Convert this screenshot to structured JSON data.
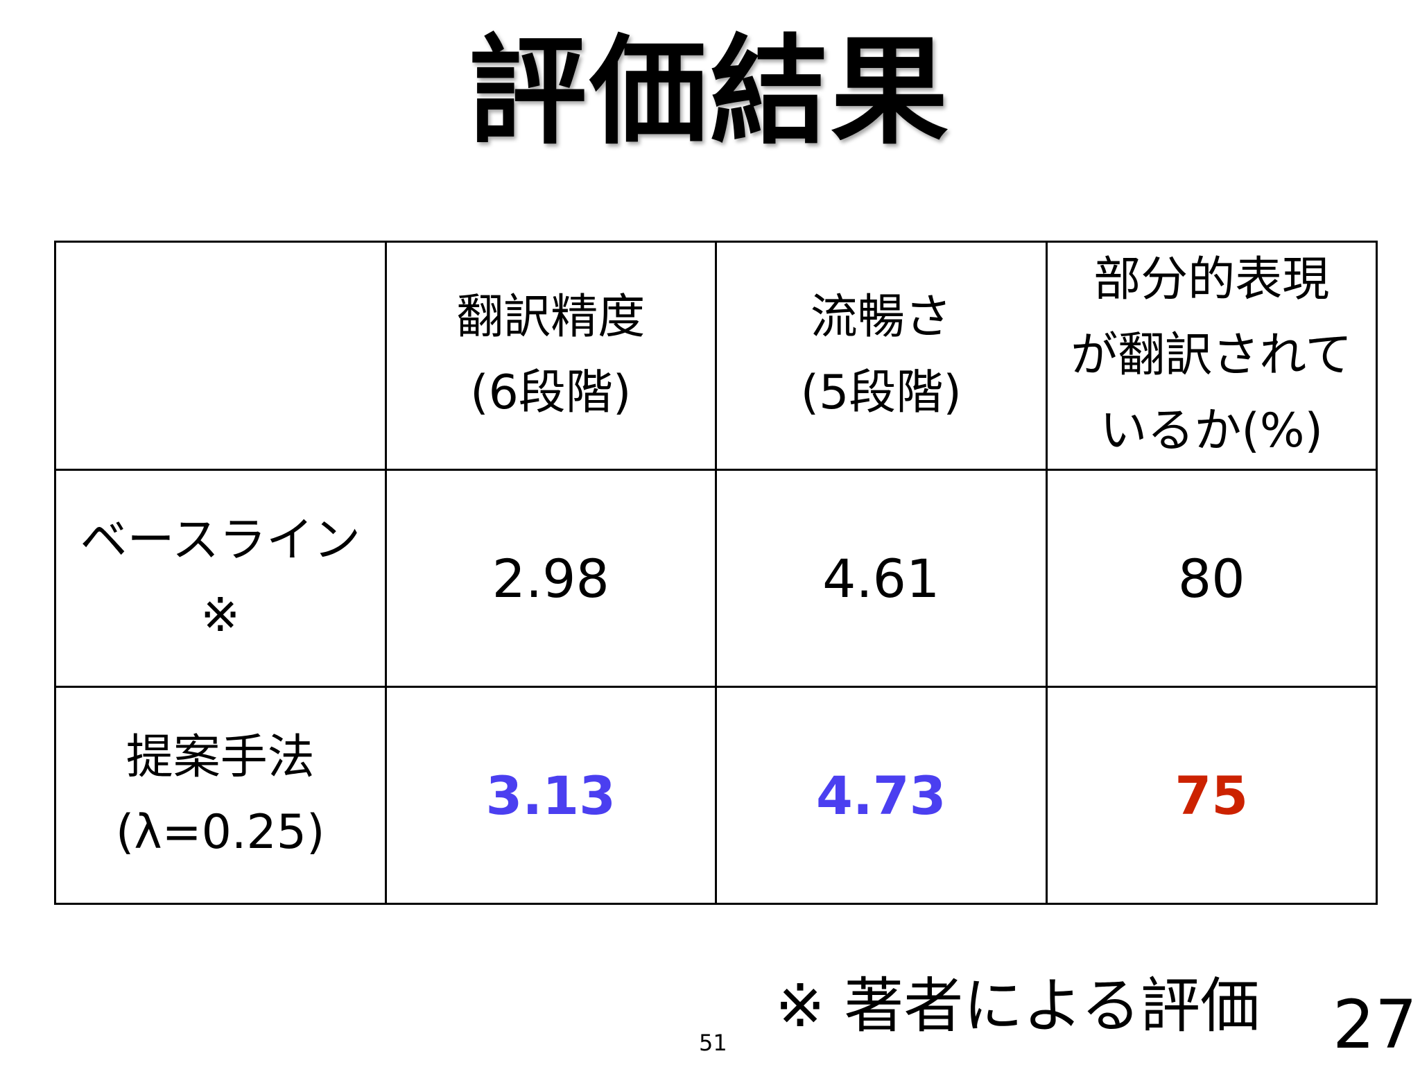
{
  "title": "評価結果",
  "table": {
    "headers": [
      "",
      "翻訳精度\n(6段階)",
      "流暢さ\n(5段階)",
      "部分的表現\nが翻訳されて\nいるか(%)"
    ],
    "rows": [
      {
        "label": "ベースライン\n※",
        "values": [
          "2.98",
          "4.61",
          "80"
        ]
      },
      {
        "label": "提案手法\n(λ=0.25)",
        "values": [
          "3.13",
          "4.73",
          "75"
        ]
      }
    ]
  },
  "colors": {
    "improved": "#4b3ff0",
    "worse": "#cc2200"
  },
  "footnote": "※ 著者による評価",
  "slide_index": "51",
  "page_number": "27"
}
